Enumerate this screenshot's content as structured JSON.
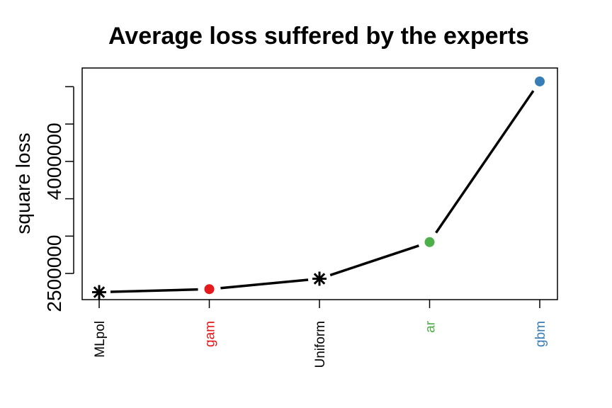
{
  "chart_data": {
    "type": "line",
    "title": "Average loss suffered by the experts",
    "xlabel": "",
    "ylabel": "square loss",
    "categories": [
      "MLpol",
      "gam",
      "Uniform",
      "ar",
      "gbm"
    ],
    "values": [
      2250000,
      2290000,
      2430000,
      2920000,
      5070000
    ],
    "markers": [
      "asterisk",
      "dot",
      "asterisk",
      "dot",
      "dot"
    ],
    "colors": [
      "#000000",
      "#E41A1C",
      "#000000",
      "#4DAF4A",
      "#377EB8"
    ],
    "yticks": [
      2500000,
      3000000,
      3500000,
      4000000,
      4500000,
      5000000
    ],
    "ytick_labels": [
      "2500000",
      "",
      "",
      "4000000",
      "",
      ""
    ],
    "ylim": [
      2150000,
      5250000
    ],
    "grid": false,
    "legend": "none"
  }
}
